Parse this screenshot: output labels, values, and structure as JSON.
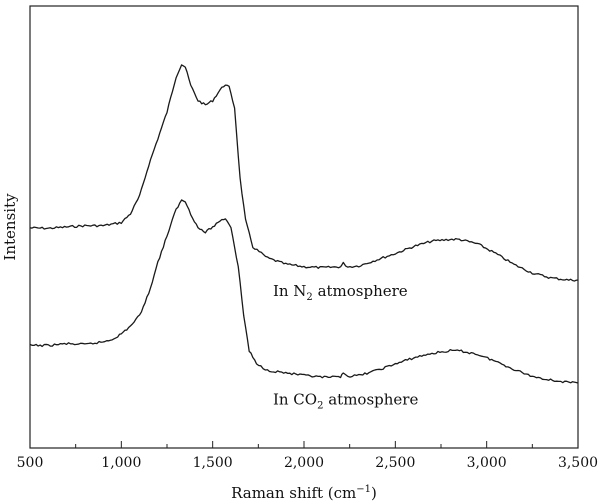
{
  "chart_data": {
    "type": "line",
    "title": "",
    "xlabel": "Raman shift (cm",
    "xlabel_sup": "−1",
    "xlabel_close": ")",
    "ylabel": "Intensity",
    "xlim": [
      500,
      3500
    ],
    "ylim": [
      0,
      1
    ],
    "grid": false,
    "x_ticks": [
      500,
      1000,
      1500,
      2000,
      2500,
      3000,
      3500
    ],
    "x_tick_labels": [
      "500",
      "1,000",
      "1,500",
      "2,000",
      "2,500",
      "3,000",
      "3,500"
    ],
    "y_ticks_shown": false,
    "series": [
      {
        "label_prefix": "In N",
        "label_sub": "2",
        "label_suffix": " atmosphere",
        "points": [
          [
            500,
            0.498
          ],
          [
            600,
            0.497
          ],
          [
            700,
            0.5
          ],
          [
            800,
            0.503
          ],
          [
            900,
            0.503
          ],
          [
            1000,
            0.51
          ],
          [
            1050,
            0.53
          ],
          [
            1100,
            0.57
          ],
          [
            1150,
            0.64
          ],
          [
            1200,
            0.7
          ],
          [
            1250,
            0.76
          ],
          [
            1300,
            0.84
          ],
          [
            1330,
            0.868
          ],
          [
            1350,
            0.862
          ],
          [
            1380,
            0.82
          ],
          [
            1420,
            0.786
          ],
          [
            1460,
            0.776
          ],
          [
            1500,
            0.786
          ],
          [
            1540,
            0.81
          ],
          [
            1570,
            0.823
          ],
          [
            1590,
            0.816
          ],
          [
            1620,
            0.77
          ],
          [
            1650,
            0.61
          ],
          [
            1680,
            0.515
          ],
          [
            1720,
            0.455
          ],
          [
            1800,
            0.43
          ],
          [
            1900,
            0.416
          ],
          [
            2000,
            0.41
          ],
          [
            2100,
            0.408
          ],
          [
            2200,
            0.41
          ],
          [
            2215,
            0.418
          ],
          [
            2240,
            0.41
          ],
          [
            2300,
            0.412
          ],
          [
            2400,
            0.426
          ],
          [
            2500,
            0.44
          ],
          [
            2600,
            0.456
          ],
          [
            2700,
            0.468
          ],
          [
            2800,
            0.472
          ],
          [
            2850,
            0.472
          ],
          [
            2950,
            0.462
          ],
          [
            3050,
            0.44
          ],
          [
            3150,
            0.415
          ],
          [
            3250,
            0.396
          ],
          [
            3350,
            0.385
          ],
          [
            3450,
            0.38
          ],
          [
            3500,
            0.38
          ]
        ]
      },
      {
        "label_prefix": "In CO",
        "label_sub": "2",
        "label_suffix": " atmosphere",
        "points": [
          [
            500,
            0.232
          ],
          [
            600,
            0.232
          ],
          [
            700,
            0.236
          ],
          [
            800,
            0.234
          ],
          [
            900,
            0.24
          ],
          [
            950,
            0.246
          ],
          [
            1000,
            0.258
          ],
          [
            1050,
            0.276
          ],
          [
            1100,
            0.3
          ],
          [
            1150,
            0.35
          ],
          [
            1200,
            0.42
          ],
          [
            1250,
            0.48
          ],
          [
            1300,
            0.54
          ],
          [
            1330,
            0.56
          ],
          [
            1350,
            0.558
          ],
          [
            1380,
            0.53
          ],
          [
            1420,
            0.498
          ],
          [
            1460,
            0.488
          ],
          [
            1500,
            0.5
          ],
          [
            1540,
            0.514
          ],
          [
            1570,
            0.52
          ],
          [
            1600,
            0.5
          ],
          [
            1640,
            0.41
          ],
          [
            1670,
            0.3
          ],
          [
            1700,
            0.22
          ],
          [
            1740,
            0.19
          ],
          [
            1800,
            0.176
          ],
          [
            1900,
            0.17
          ],
          [
            2000,
            0.164
          ],
          [
            2100,
            0.16
          ],
          [
            2200,
            0.16
          ],
          [
            2215,
            0.172
          ],
          [
            2240,
            0.162
          ],
          [
            2300,
            0.164
          ],
          [
            2400,
            0.176
          ],
          [
            2500,
            0.19
          ],
          [
            2600,
            0.204
          ],
          [
            2700,
            0.214
          ],
          [
            2800,
            0.22
          ],
          [
            2850,
            0.22
          ],
          [
            2950,
            0.212
          ],
          [
            3050,
            0.196
          ],
          [
            3150,
            0.178
          ],
          [
            3250,
            0.162
          ],
          [
            3350,
            0.154
          ],
          [
            3450,
            0.148
          ],
          [
            3500,
            0.147
          ]
        ]
      }
    ]
  }
}
